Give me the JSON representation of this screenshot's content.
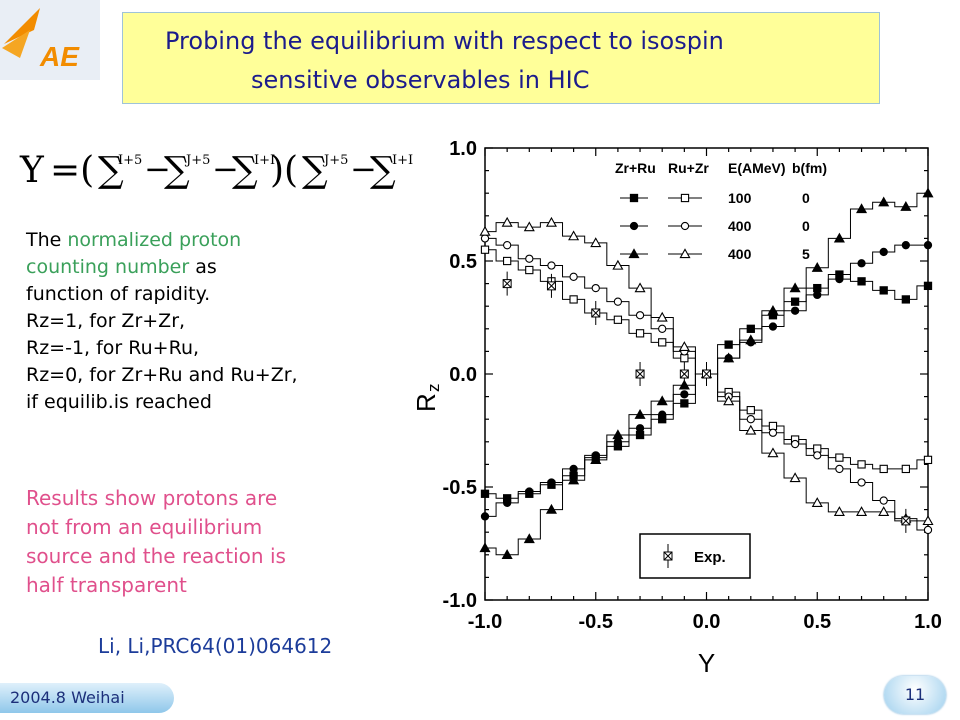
{
  "header": {
    "title_line1": "Probing the equilibrium with respect to  isospin",
    "title_line2": "sensitive observables in HIC"
  },
  "logo": {
    "text": "AE",
    "brand_color": "#f28c00",
    "icon": "iae-logo-icon"
  },
  "formula": {
    "lhs": "Y",
    "description_icon": "rz-formula-icon"
  },
  "body_text": {
    "p1_prefix": "The ",
    "p1_green_line1": "normalized proton",
    "p1_green_line2": "counting number",
    "p1_suffix": " as",
    "line3": "function of rapidity.",
    "line4": "Rz=1,  for Zr+Zr,",
    "line5": "Rz=-1, for Ru+Ru,",
    "line6": "Rz=0,  for Zr+Ru and Ru+Zr,",
    "line7": "if equilib.is reached",
    "results_line1": "Results show protons are",
    "results_line2": "not from an  equilibrium",
    "results_line3": "source and the reaction is",
    "results_line4": "half transparent"
  },
  "citation": "Li, Li,PRC64(01)064612",
  "footer": {
    "left_text": "2004.8 Weihai",
    "page_number": "11"
  },
  "chart_data": {
    "type": "line",
    "xlabel": "Y",
    "ylabel": "R",
    "ylabel_sub": "z",
    "xlim": [
      -1.0,
      1.0
    ],
    "ylim": [
      -1.0,
      1.0
    ],
    "xticks": [
      "-1.0",
      "-0.5",
      "0.0",
      "0.5",
      "1.0"
    ],
    "yticks": [
      "1.0",
      "0.5",
      "0.0",
      "-0.5",
      "-1.0"
    ],
    "grid": false,
    "legend": {
      "placement": "top-right",
      "headers": [
        "Zr+Ru",
        "Ru+Zr",
        "E(AMeV)",
        "b(fm)"
      ],
      "rows": [
        {
          "marker": "square",
          "energy": "100",
          "b": "0"
        },
        {
          "marker": "circle",
          "energy": "400",
          "b": "0"
        },
        {
          "marker": "triangle",
          "energy": "400",
          "b": "5"
        }
      ]
    },
    "exp_legend": {
      "label": "Exp.",
      "placement": "bottom-right"
    },
    "x": [
      -1.0,
      -0.9,
      -0.8,
      -0.7,
      -0.6,
      -0.5,
      -0.4,
      -0.3,
      -0.2,
      -0.1,
      0.0,
      0.1,
      0.2,
      0.3,
      0.4,
      0.5,
      0.6,
      0.7,
      0.8,
      0.9,
      1.0
    ],
    "series": [
      {
        "marker": "square",
        "fill": "filled",
        "values": [
          -0.53,
          -0.55,
          -0.53,
          -0.49,
          -0.45,
          -0.37,
          -0.32,
          -0.27,
          -0.2,
          -0.13,
          0.0,
          0.13,
          0.2,
          0.26,
          0.32,
          0.38,
          0.44,
          0.41,
          0.37,
          0.33,
          0.39
        ]
      },
      {
        "marker": "square",
        "fill": "open",
        "values": [
          0.55,
          0.5,
          0.46,
          0.41,
          0.33,
          0.27,
          0.24,
          0.18,
          0.14,
          0.07,
          0.0,
          -0.08,
          -0.16,
          -0.23,
          -0.29,
          -0.33,
          -0.37,
          -0.4,
          -0.42,
          -0.42,
          -0.38
        ]
      },
      {
        "marker": "circle",
        "fill": "filled",
        "values": [
          -0.63,
          -0.57,
          -0.52,
          -0.48,
          -0.42,
          -0.36,
          -0.3,
          -0.24,
          -0.18,
          -0.09,
          0.0,
          0.07,
          0.14,
          0.21,
          0.28,
          0.35,
          0.42,
          0.49,
          0.54,
          0.57,
          0.57
        ]
      },
      {
        "marker": "circle",
        "fill": "open",
        "values": [
          0.6,
          0.57,
          0.51,
          0.48,
          0.43,
          0.38,
          0.32,
          0.26,
          0.2,
          0.1,
          0.0,
          -0.1,
          -0.2,
          -0.26,
          -0.31,
          -0.36,
          -0.42,
          -0.48,
          -0.56,
          -0.65,
          -0.69
        ]
      },
      {
        "marker": "triangle",
        "fill": "filled",
        "values": [
          -0.77,
          -0.8,
          -0.73,
          -0.6,
          -0.47,
          -0.38,
          -0.27,
          -0.18,
          -0.12,
          -0.05,
          0.0,
          0.07,
          0.15,
          0.28,
          0.38,
          0.47,
          0.6,
          0.73,
          0.76,
          0.74,
          0.8
        ]
      },
      {
        "marker": "triangle",
        "fill": "open",
        "values": [
          0.63,
          0.67,
          0.65,
          0.67,
          0.61,
          0.58,
          0.48,
          0.38,
          0.25,
          0.12,
          0.0,
          -0.12,
          -0.25,
          -0.35,
          -0.46,
          -0.57,
          -0.61,
          -0.61,
          -0.61,
          -0.64,
          -0.65
        ]
      }
    ],
    "experimental": {
      "marker": "x-box",
      "points": [
        {
          "x": -0.9,
          "y": 0.4
        },
        {
          "x": -0.7,
          "y": 0.39
        },
        {
          "x": -0.5,
          "y": 0.27
        },
        {
          "x": -0.3,
          "y": 0.0
        },
        {
          "x": -0.1,
          "y": 0.0
        },
        {
          "x": 0.0,
          "y": 0.0
        },
        {
          "x": 0.9,
          "y": -0.65
        }
      ]
    }
  }
}
